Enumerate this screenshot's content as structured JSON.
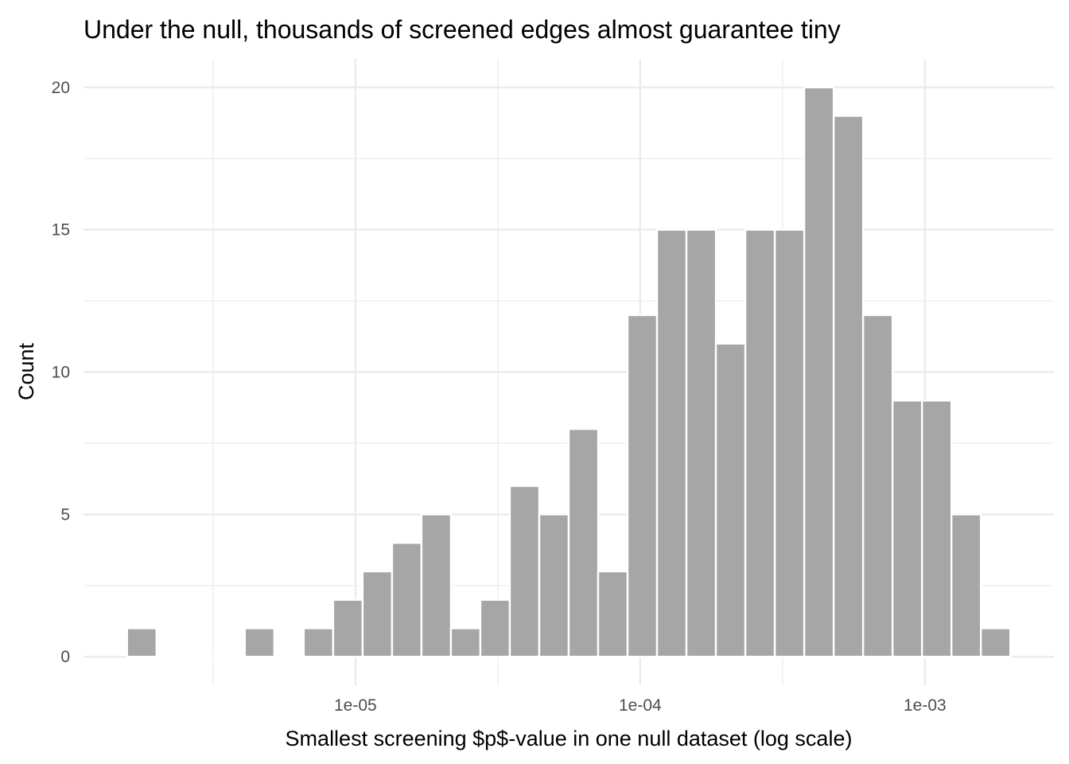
{
  "chart_data": {
    "type": "bar",
    "title": "Under the null, thousands of screened edges almost guarantee tiny",
    "xlabel": "Smallest screening $p$-value in one null dataset (log scale)",
    "ylabel": "Count",
    "x_scale": "log10",
    "xlim_log10": [
      -5.955,
      -2.547
    ],
    "ylim": [
      -1,
      21
    ],
    "x_ticks": [
      {
        "value": -5,
        "label": "1e-05"
      },
      {
        "value": -4,
        "label": "1e-04"
      },
      {
        "value": -3,
        "label": "1e-03"
      }
    ],
    "x_minor_ticks": [
      -5.5,
      -4.5,
      -3.5
    ],
    "y_ticks": [
      {
        "value": 0,
        "label": "0"
      },
      {
        "value": 5,
        "label": "5"
      },
      {
        "value": 10,
        "label": "10"
      },
      {
        "value": 15,
        "label": "15"
      },
      {
        "value": 20,
        "label": "20"
      }
    ],
    "y_minor_ticks": [
      2.5,
      7.5,
      12.5,
      17.5
    ],
    "bin_start_log10": -5.802,
    "bin_width_log10": 0.1034,
    "values": [
      1,
      0,
      0,
      0,
      1,
      0,
      1,
      2,
      3,
      4,
      5,
      1,
      2,
      6,
      5,
      8,
      3,
      12,
      15,
      15,
      11,
      15,
      15,
      20,
      19,
      12,
      9,
      9,
      5,
      1
    ],
    "bar_color": "#a6a6a6",
    "grid": true
  }
}
